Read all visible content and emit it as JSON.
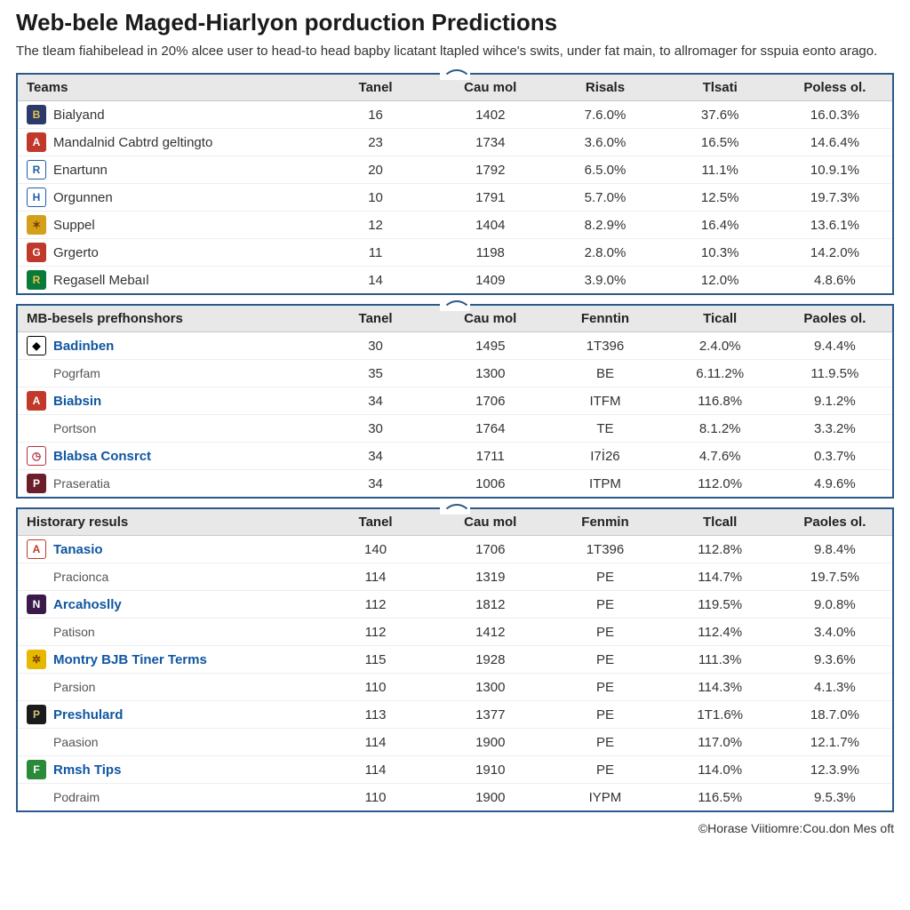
{
  "header": {
    "title": "Web-bele Maged-Hiarlyon porduction Predictions",
    "description": "The tleam fiahibelead in 20% alcee user to head-to head bapby licatant ltapled wihce's swits, under fat main, to allromager for sspuia eonto arago."
  },
  "panels": [
    {
      "name": "teams-panel",
      "columns": [
        "Teams",
        "Tanel",
        "Cau mol",
        "Risals",
        "Tlsati",
        "Poless ol."
      ],
      "rows": [
        {
          "logo_bg": "#2b3a6b",
          "logo_fg": "#e6c34a",
          "logo_txt": "B",
          "name": "Bialyand",
          "link": false,
          "c": [
            "16",
            "1402",
            "7.6.0%",
            "37.6%",
            "16.0.3%"
          ]
        },
        {
          "logo_bg": "#c0392b",
          "logo_fg": "#ffffff",
          "logo_txt": "A",
          "name": "Mandalnid Cabtrd geltingto",
          "link": false,
          "c": [
            "23",
            "1734",
            "3.6.0%",
            "16.5%",
            "14.6.4%"
          ]
        },
        {
          "logo_bg": "#ffffff",
          "logo_fg": "#1e5fa8",
          "logo_txt": "R",
          "name": "Enartunn",
          "link": false,
          "c": [
            "20",
            "1792",
            "6.5.0%",
            "11.1%",
            "10.9.1%"
          ]
        },
        {
          "logo_bg": "#ffffff",
          "logo_fg": "#1e5fa8",
          "logo_txt": "H",
          "name": "Orgunnen",
          "link": false,
          "c": [
            "10",
            "1791",
            "5.7.0%",
            "12.5%",
            "19.7.3%"
          ]
        },
        {
          "logo_bg": "#d4a017",
          "logo_fg": "#7a3e00",
          "logo_txt": "✶",
          "name": "Suppel",
          "link": false,
          "c": [
            "12",
            "1404",
            "8.2.9%",
            "16.4%",
            "13.6.1%"
          ]
        },
        {
          "logo_bg": "#c0392b",
          "logo_fg": "#ffffff",
          "logo_txt": "G",
          "name": "Grgerto",
          "link": false,
          "c": [
            "11",
            "1198",
            "2.8.0%",
            "10.3%",
            "14.2.0%"
          ]
        },
        {
          "logo_bg": "#0a7a3a",
          "logo_fg": "#e6c34a",
          "logo_txt": "R",
          "name": "Regasell Mebaıl",
          "link": false,
          "c": [
            "14",
            "1409",
            "3.9.0%",
            "12.0%",
            "4.8.6%"
          ]
        }
      ]
    },
    {
      "name": "mb-panel",
      "columns": [
        "MB-besels prefhonshors",
        "Tanel",
        "Cau mol",
        "Fenntin",
        "Ticall",
        "Paoles ol."
      ],
      "rows": [
        {
          "logo_bg": "#ffffff",
          "logo_fg": "#000000",
          "logo_txt": "◆",
          "name": "Badinben",
          "link": true,
          "c": [
            "30",
            "1495",
            "1T396",
            "2.4.0%",
            "9.4.4%"
          ]
        },
        {
          "logo_bg": "#ffffff",
          "logo_fg": "#000000",
          "logo_txt": "",
          "name": "Pogrfam",
          "link": false,
          "sub": true,
          "c": [
            "35",
            "1300",
            "BE",
            "6.11.2%",
            "11.9.5%"
          ]
        },
        {
          "logo_bg": "#c0392b",
          "logo_fg": "#ffffff",
          "logo_txt": "A",
          "name": "Biabsin",
          "link": true,
          "c": [
            "34",
            "1706",
            "ITFM",
            "116.8%",
            "9.1.2%"
          ]
        },
        {
          "logo_bg": "#ffffff",
          "logo_fg": "#000000",
          "logo_txt": "",
          "name": "Portson",
          "link": false,
          "sub": true,
          "c": [
            "30",
            "1764",
            "TE",
            "8.1.2%",
            "3.3.2%"
          ]
        },
        {
          "logo_bg": "#ffffff",
          "logo_fg": "#b03040",
          "logo_txt": "◷",
          "name": "Blabsa Consrct",
          "link": true,
          "c": [
            "34",
            "1711",
            "I7İ26",
            "4.7.6%",
            "0.3.7%"
          ]
        },
        {
          "logo_bg": "#6b1f2a",
          "logo_fg": "#ffffff",
          "logo_txt": "P",
          "name": "Praseratia",
          "link": false,
          "sub": true,
          "c": [
            "34",
            "1006",
            "ITPM",
            "112.0%",
            "4.9.6%"
          ]
        }
      ]
    },
    {
      "name": "history-panel",
      "columns": [
        "Historary resuls",
        "Tanel",
        "Cau mol",
        "Fenmin",
        "Tlcall",
        "Paoles ol."
      ],
      "rows": [
        {
          "logo_bg": "#ffffff",
          "logo_fg": "#c0392b",
          "logo_txt": "A",
          "name": "Tanasio",
          "link": true,
          "c": [
            "140",
            "1706",
            "1T396",
            "112.8%",
            "9.8.4%"
          ]
        },
        {
          "logo_bg": "#ffffff",
          "logo_fg": "#000000",
          "logo_txt": "",
          "name": "Pracionca",
          "link": false,
          "sub": true,
          "c": [
            "114",
            "1319",
            "PE",
            "114.7%",
            "19.7.5%"
          ]
        },
        {
          "logo_bg": "#3a1a4a",
          "logo_fg": "#ffffff",
          "logo_txt": "N",
          "name": "Arcahoslly",
          "link": true,
          "c": [
            "112",
            "1812",
            "PE",
            "119.5%",
            "9.0.8%"
          ]
        },
        {
          "logo_bg": "#ffffff",
          "logo_fg": "#000000",
          "logo_txt": "",
          "name": "Patison",
          "link": false,
          "sub": true,
          "c": [
            "112",
            "1412",
            "PE",
            "112.4%",
            "3.4.0%"
          ]
        },
        {
          "logo_bg": "#e6b800",
          "logo_fg": "#7a3e00",
          "logo_txt": "✲",
          "name": "Montry BJB Tiner Terms",
          "link": true,
          "c": [
            "115",
            "1928",
            "PE",
            "111.3%",
            "9.3.6%"
          ]
        },
        {
          "logo_bg": "#ffffff",
          "logo_fg": "#000000",
          "logo_txt": "",
          "name": "Parsion",
          "link": false,
          "sub": true,
          "c": [
            "110",
            "1300",
            "PE",
            "114.3%",
            "4.1.3%"
          ]
        },
        {
          "logo_bg": "#1a1a1a",
          "logo_fg": "#d0c080",
          "logo_txt": "P",
          "name": "Preshulard",
          "link": true,
          "c": [
            "113",
            "1377",
            "PE",
            "1T1.6%",
            "18.7.0%"
          ]
        },
        {
          "logo_bg": "#ffffff",
          "logo_fg": "#000000",
          "logo_txt": "",
          "name": "Paasion",
          "link": false,
          "sub": true,
          "c": [
            "114",
            "1900",
            "PE",
            "117.0%",
            "12.1.7%"
          ]
        },
        {
          "logo_bg": "#2a8a3a",
          "logo_fg": "#ffffff",
          "logo_txt": "F",
          "name": "Rmsh Tips",
          "link": true,
          "c": [
            "114",
            "1910",
            "PE",
            "114.0%",
            "12.3.9%"
          ]
        },
        {
          "logo_bg": "#ffffff",
          "logo_fg": "#000000",
          "logo_txt": "",
          "name": "Podraim",
          "link": false,
          "sub": true,
          "c": [
            "110",
            "1900",
            "IYPM",
            "116.5%",
            "9.5.3%"
          ]
        }
      ]
    }
  ],
  "footer": "©Horase Viitiomre:Cou.don Mes oft"
}
